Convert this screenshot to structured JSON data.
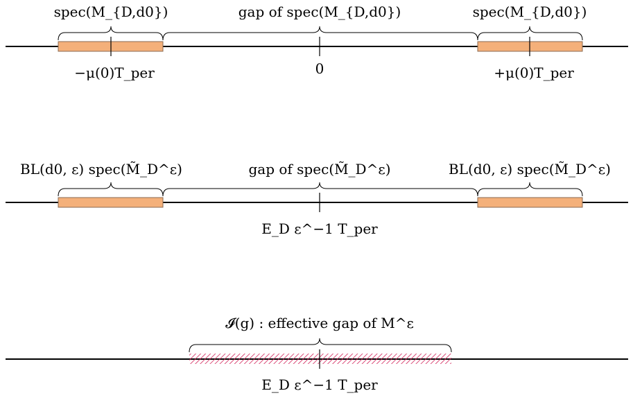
{
  "colors": {
    "band_fill": "#f4b07a",
    "band_stroke": "#8a6a52",
    "hatch": "#d1245a"
  },
  "panel1": {
    "left_label": "spec(M_{D,d0})",
    "mid_label": "gap  of  spec(M_{D,d0})",
    "right_label": "spec(M_{D,d0})",
    "tick_left": "−μ(0)T_per",
    "tick_mid": "0",
    "tick_right": "+μ(0)T_per"
  },
  "panel2": {
    "left_label": "BL(d0, ε)  spec(M̃_D^ε)",
    "mid_label": "gap  of  spec(M̃_D^ε)",
    "right_label": "BL(d0, ε)  spec(M̃_D^ε)",
    "tick_mid": "E_D ε^−1 T_per"
  },
  "panel3": {
    "top_label": "𝓘(g)  :  effective gap  of   M^ε",
    "tick_mid": "E_D ε^−1 T_per"
  }
}
